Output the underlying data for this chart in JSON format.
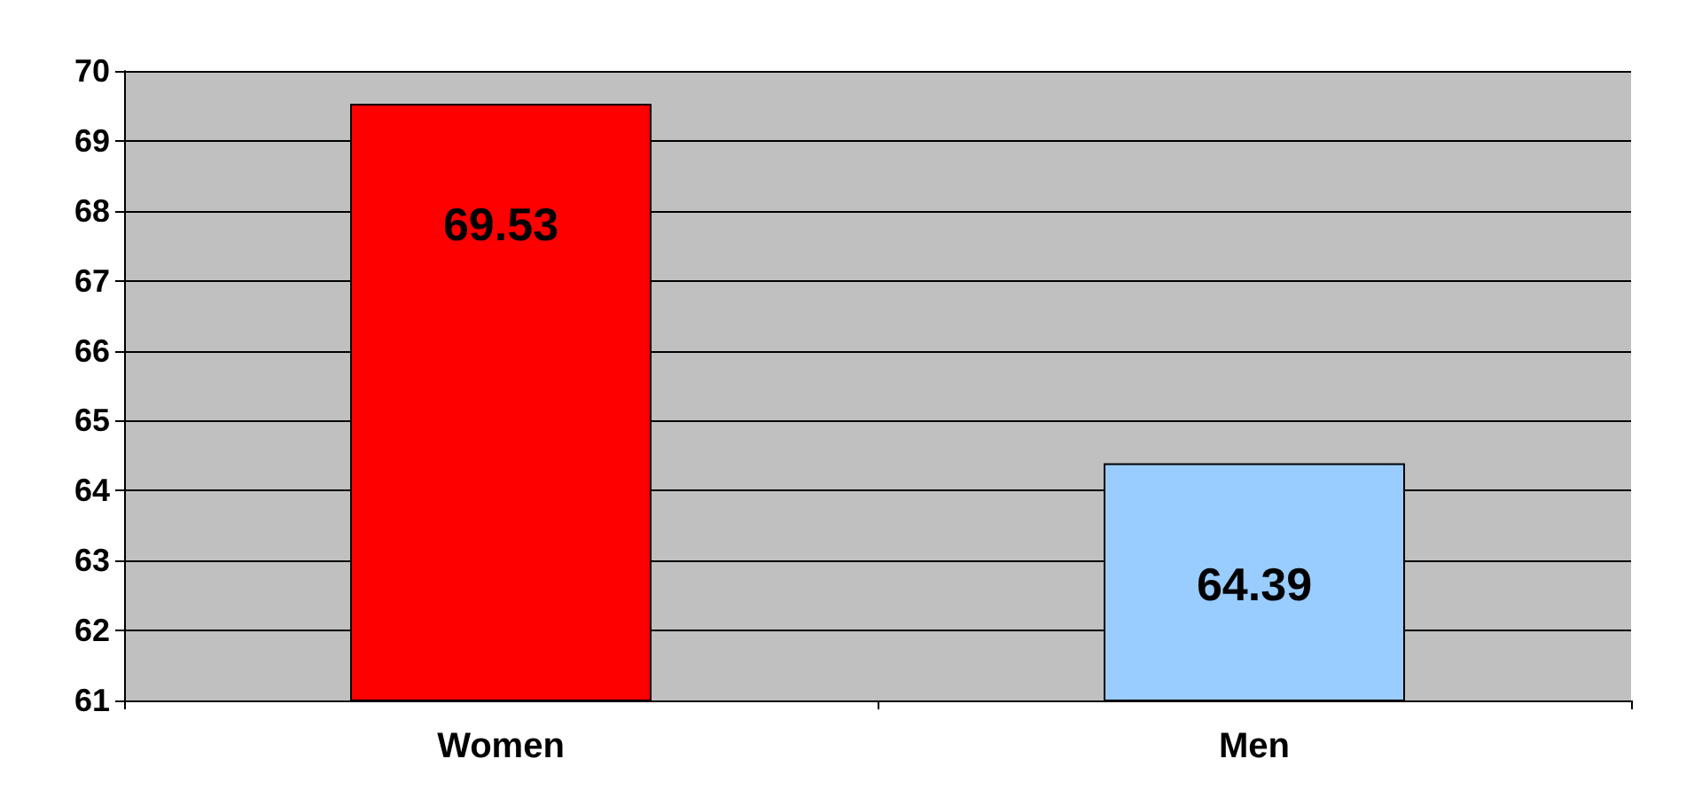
{
  "chart_data": {
    "type": "bar",
    "categories": [
      "Women",
      "Men"
    ],
    "values": [
      69.53,
      64.39
    ],
    "colors": [
      "#ff0000",
      "#99ccff"
    ],
    "ylim": [
      61,
      70
    ],
    "yticks": [
      61,
      62,
      63,
      64,
      65,
      66,
      67,
      68,
      69,
      70
    ],
    "grid": "y",
    "data_labels": true
  }
}
